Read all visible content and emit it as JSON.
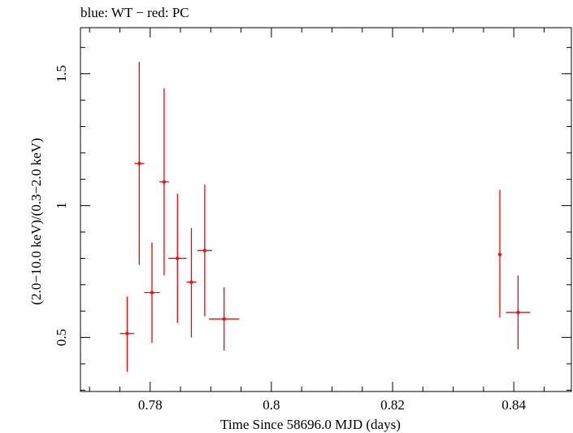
{
  "chart_data": {
    "type": "scatter",
    "title": "blue: WT − red: PC",
    "xlabel": "Time Since 58696.0 MJD (days)",
    "ylabel": "(2.0−10.0 keV)/(0.3−2.0 keV)",
    "xlim": [
      0.7685,
      0.8495
    ],
    "ylim": [
      0.295,
      1.675
    ],
    "x_ticks": [
      {
        "value": 0.78,
        "label": "0.78"
      },
      {
        "value": 0.8,
        "label": "0.8"
      },
      {
        "value": 0.82,
        "label": "0.82"
      },
      {
        "value": 0.84,
        "label": "0.84"
      }
    ],
    "y_ticks": [
      {
        "value": 0.5,
        "label": "0.5"
      },
      {
        "value": 1.0,
        "label": "1"
      },
      {
        "value": 1.5,
        "label": "1.5"
      }
    ],
    "grid": false,
    "series": [
      {
        "name": "PC",
        "color": "#ff0000",
        "points": [
          {
            "x": 0.7762,
            "xerr": 0.0012,
            "y": 0.515,
            "yerr_low": 0.145,
            "yerr_high": 0.14
          },
          {
            "x": 0.7782,
            "xerr": 0.0008,
            "y": 1.16,
            "yerr_low": 0.385,
            "yerr_high": 0.385
          },
          {
            "x": 0.7803,
            "xerr": 0.0013,
            "y": 0.67,
            "yerr_low": 0.19,
            "yerr_high": 0.19
          },
          {
            "x": 0.7823,
            "xerr": 0.0008,
            "y": 1.09,
            "yerr_low": 0.355,
            "yerr_high": 0.355
          },
          {
            "x": 0.7845,
            "xerr": 0.0015,
            "y": 0.8,
            "yerr_low": 0.245,
            "yerr_high": 0.245
          },
          {
            "x": 0.7868,
            "xerr": 0.0008,
            "y": 0.71,
            "yerr_low": 0.21,
            "yerr_high": 0.205
          },
          {
            "x": 0.789,
            "xerr": 0.0012,
            "y": 0.83,
            "yerr_low": 0.25,
            "yerr_high": 0.25
          },
          {
            "x": 0.7922,
            "xerr": 0.0025,
            "y": 0.57,
            "yerr_low": 0.12,
            "yerr_high": 0.12
          },
          {
            "x": 0.8377,
            "xerr": 0.0003,
            "y": 0.815,
            "yerr_low": 0.24,
            "yerr_high": 0.245
          },
          {
            "x": 0.8407,
            "xerr": 0.002,
            "y": 0.595,
            "yerr_low": 0.14,
            "yerr_high": 0.14
          }
        ]
      }
    ]
  }
}
